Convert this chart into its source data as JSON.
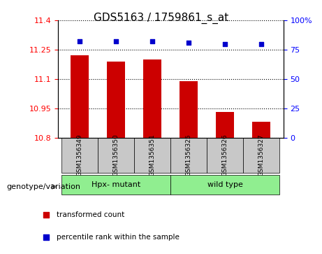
{
  "title": "GDS5163 / 1759861_s_at",
  "samples": [
    "GSM1356349",
    "GSM1356350",
    "GSM1356351",
    "GSM1356325",
    "GSM1356326",
    "GSM1356327"
  ],
  "bar_values": [
    11.22,
    11.19,
    11.2,
    11.09,
    10.93,
    10.88
  ],
  "percentile_values": [
    82,
    82,
    82,
    81,
    80,
    80
  ],
  "bar_color": "#cc0000",
  "dot_color": "#0000cc",
  "ylim_left": [
    10.8,
    11.4
  ],
  "ylim_right": [
    0,
    100
  ],
  "yticks_left": [
    10.8,
    10.95,
    11.1,
    11.25,
    11.4
  ],
  "ytick_labels_left": [
    "10.8",
    "10.95",
    "11.1",
    "11.25",
    "11.4"
  ],
  "yticks_right": [
    0,
    25,
    50,
    75,
    100
  ],
  "ytick_labels_right": [
    "0",
    "25",
    "50",
    "75",
    "100%"
  ],
  "group1_label": "Hpx- mutant",
  "group2_label": "wild type",
  "group1_color": "#90ee90",
  "group2_color": "#90ee90",
  "group_bar_color": "#c8c8c8",
  "genotype_label": "genotype/variation",
  "legend1_label": "transformed count",
  "legend2_label": "percentile rank within the sample",
  "group1_samples": 3,
  "group2_samples": 3,
  "bar_bottom": 10.8
}
